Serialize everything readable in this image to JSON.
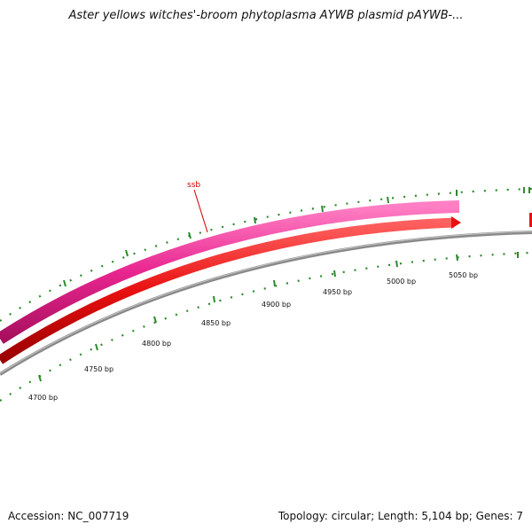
{
  "title": "Aster yellows witches'-broom phytoplasma AYWB plasmid pAYWB-...",
  "accession_label": "Accession:",
  "accession": "NC_007719",
  "footer_right": "Topology: circular; Length: 5,104 bp; Genes: 7",
  "gene_label": "ssb",
  "tick_labels": [
    "4700 bp",
    "4750 bp",
    "4800 bp",
    "4850 bp",
    "4900 bp",
    "4950 bp",
    "5000 bp",
    "5050 bp"
  ],
  "colors": {
    "pink_track": "#e8258f",
    "red_track": "#e81010",
    "backbone": "#8a8a8a",
    "ticks": "#2a8a2a",
    "label": "#cc0000"
  }
}
